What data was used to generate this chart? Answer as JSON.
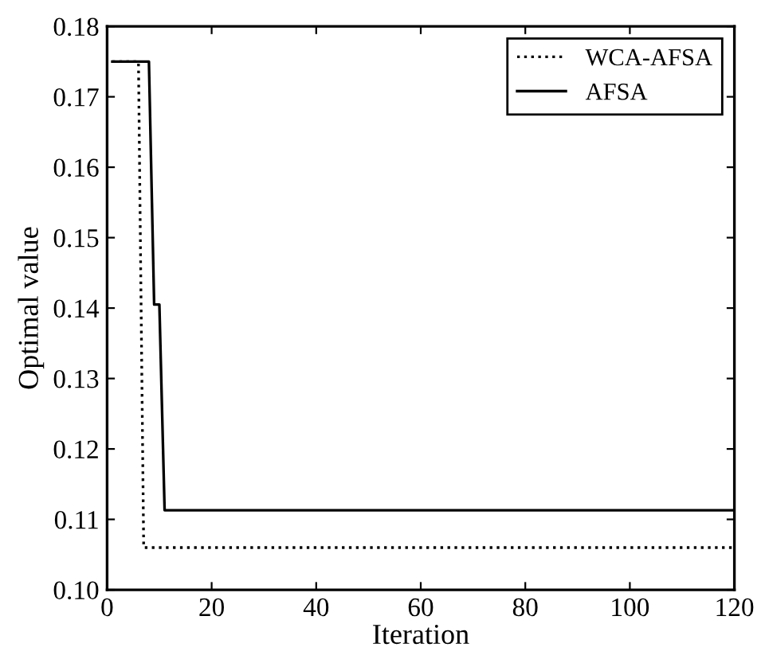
{
  "chart_data": {
    "type": "line",
    "xlabel": "Iteration",
    "ylabel": "Optimal value",
    "series": [
      {
        "name": "WCA-AFSA",
        "color": "#000000",
        "line_style": "dotted",
        "x": [
          1,
          6,
          7,
          120
        ],
        "values": [
          0.175,
          0.175,
          0.106,
          0.106
        ]
      },
      {
        "name": "AFSA",
        "color": "#000000",
        "line_style": "solid",
        "x": [
          1,
          8,
          9,
          10,
          11,
          120
        ],
        "values": [
          0.175,
          0.175,
          0.1405,
          0.1405,
          0.1113,
          0.1113
        ]
      }
    ],
    "xlim": [
      0,
      120
    ],
    "xticks": [
      0,
      20,
      40,
      60,
      80,
      100,
      120
    ],
    "ylim": [
      0.1,
      0.18
    ],
    "yticks": [
      {
        "value": 0.1,
        "label": "0.10"
      },
      0.11,
      0.12,
      0.13,
      0.14,
      0.15,
      0.16,
      0.17,
      0.18
    ],
    "grid": false,
    "legend": "top right",
    "marker": "none"
  }
}
